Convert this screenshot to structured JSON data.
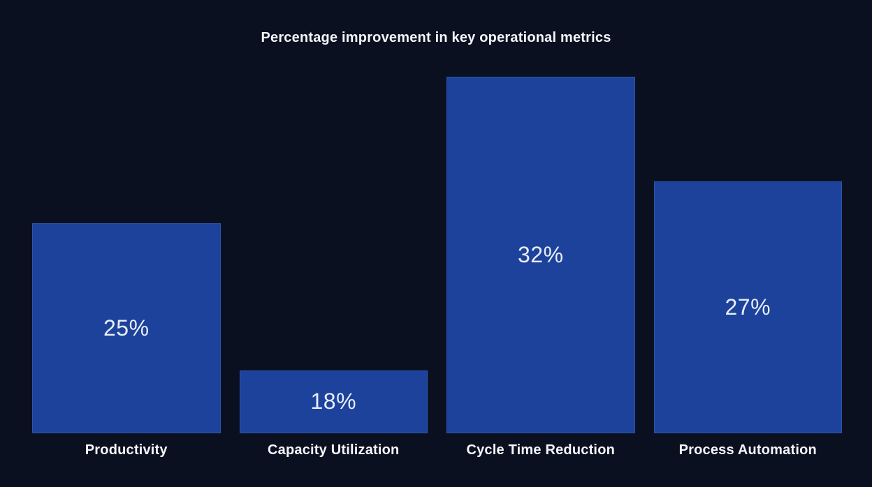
{
  "title": "Percentage improvement in key operational metrics",
  "colors": {
    "background": "#0a101f",
    "bar_fill": "#1c429c",
    "bar_border": "#2d55ad",
    "title_text": "#f4f6fb",
    "value_text": "#e9edf6",
    "category_text": "#f4f6fb"
  },
  "chart_data": {
    "type": "bar",
    "title": "Percentage improvement in key operational metrics",
    "categories": [
      "Productivity",
      "Capacity Utilization",
      "Cycle Time Reduction",
      "Process Automation"
    ],
    "values": [
      25,
      18,
      32,
      27
    ],
    "value_labels": [
      "25%",
      "18%",
      "32%",
      "27%"
    ],
    "xlabel": "",
    "ylabel": "",
    "ylim": [
      15,
      33
    ],
    "grid": false,
    "legend": false,
    "value_label_position": "inside-center",
    "axis_lines": false
  }
}
